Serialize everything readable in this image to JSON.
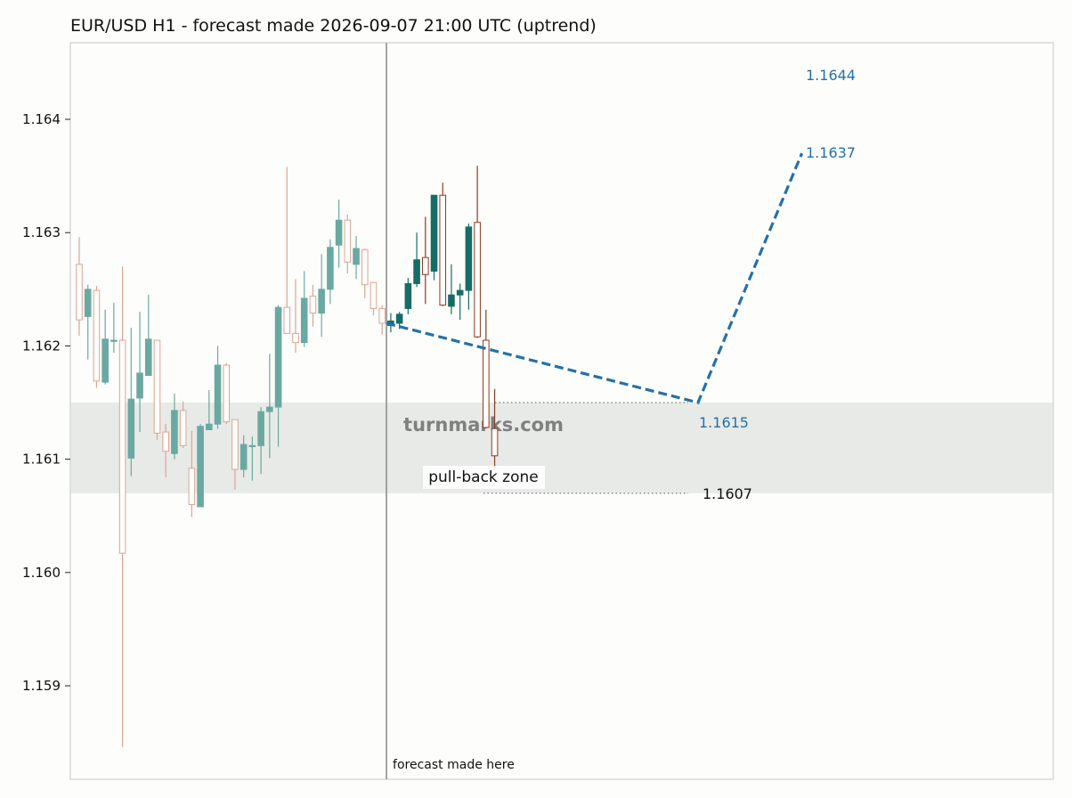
{
  "title": "EUR/USD H1 - forecast made 2026-09-07 21:00 UTC (uptrend)",
  "watermark": "turnmarks.com",
  "forecast_label": "forecast made here",
  "zone_label": "pull-back zone",
  "colors": {
    "background": "#fdfdfb",
    "frame": "#cfcfcf",
    "zone": "#e8eae7",
    "history_up": "#6aa9a1",
    "history_down": "#d9a596",
    "live_up": "#176d66",
    "live_down": "#8e3a1f",
    "forecast": "#2471a8",
    "divider": "#8f8f8f"
  },
  "chart_data": {
    "type": "candlestick",
    "ylim": [
      1.1584,
      1.1649
    ],
    "y_ticks": [
      "1.159",
      "1.160",
      "1.161",
      "1.162",
      "1.163",
      "1.164"
    ],
    "x_count": 92,
    "divider_index": 36,
    "history_candles": [
      {
        "o": 1.16272,
        "h": 1.16296,
        "l": 1.16209,
        "c": 1.16223
      },
      {
        "o": 1.16226,
        "h": 1.16254,
        "l": 1.16188,
        "c": 1.1625
      },
      {
        "o": 1.16249,
        "h": 1.16253,
        "l": 1.16163,
        "c": 1.16169
      },
      {
        "o": 1.16168,
        "h": 1.16232,
        "l": 1.16166,
        "c": 1.16206
      },
      {
        "o": 1.16204,
        "h": 1.16238,
        "l": 1.16194,
        "c": 1.16205
      },
      {
        "o": 1.16205,
        "h": 1.1627,
        "l": 1.15846,
        "c": 1.16017
      },
      {
        "o": 1.16101,
        "h": 1.16216,
        "l": 1.16085,
        "c": 1.16153
      },
      {
        "o": 1.16154,
        "h": 1.1623,
        "l": 1.16124,
        "c": 1.16176
      },
      {
        "o": 1.16174,
        "h": 1.16245,
        "l": 1.16174,
        "c": 1.16206
      },
      {
        "o": 1.16205,
        "h": 1.16205,
        "l": 1.16117,
        "c": 1.16123
      },
      {
        "o": 1.16124,
        "h": 1.16131,
        "l": 1.16084,
        "c": 1.16107
      },
      {
        "o": 1.16105,
        "h": 1.16158,
        "l": 1.161,
        "c": 1.16143
      },
      {
        "o": 1.16143,
        "h": 1.16151,
        "l": 1.1611,
        "c": 1.16112
      },
      {
        "o": 1.16092,
        "h": 1.16125,
        "l": 1.16049,
        "c": 1.1606
      },
      {
        "o": 1.16058,
        "h": 1.16131,
        "l": 1.16058,
        "c": 1.16129
      },
      {
        "o": 1.16126,
        "h": 1.16161,
        "l": 1.16126,
        "c": 1.16131
      },
      {
        "o": 1.16131,
        "h": 1.162,
        "l": 1.16127,
        "c": 1.16183
      },
      {
        "o": 1.16183,
        "h": 1.16185,
        "l": 1.16131,
        "c": 1.16133
      },
      {
        "o": 1.16135,
        "h": 1.16135,
        "l": 1.16073,
        "c": 1.16091
      },
      {
        "o": 1.16091,
        "h": 1.16121,
        "l": 1.16084,
        "c": 1.16113
      },
      {
        "o": 1.16112,
        "h": 1.1612,
        "l": 1.16081,
        "c": 1.16112
      },
      {
        "o": 1.16112,
        "h": 1.16146,
        "l": 1.16087,
        "c": 1.16142
      },
      {
        "o": 1.16142,
        "h": 1.16193,
        "l": 1.16101,
        "c": 1.16146
      },
      {
        "o": 1.16146,
        "h": 1.16236,
        "l": 1.16111,
        "c": 1.16234
      },
      {
        "o": 1.16234,
        "h": 1.16358,
        "l": 1.16211,
        "c": 1.16211
      },
      {
        "o": 1.16211,
        "h": 1.16259,
        "l": 1.16194,
        "c": 1.16203
      },
      {
        "o": 1.16203,
        "h": 1.16266,
        "l": 1.16199,
        "c": 1.16242
      },
      {
        "o": 1.16244,
        "h": 1.16254,
        "l": 1.16217,
        "c": 1.16229
      },
      {
        "o": 1.16229,
        "h": 1.16281,
        "l": 1.16208,
        "c": 1.1625
      },
      {
        "o": 1.1625,
        "h": 1.16294,
        "l": 1.16237,
        "c": 1.16287
      },
      {
        "o": 1.16289,
        "h": 1.16329,
        "l": 1.16269,
        "c": 1.16311
      },
      {
        "o": 1.16311,
        "h": 1.16316,
        "l": 1.16264,
        "c": 1.16274
      },
      {
        "o": 1.16272,
        "h": 1.16297,
        "l": 1.16259,
        "c": 1.16286
      },
      {
        "o": 1.16285,
        "h": 1.16286,
        "l": 1.16242,
        "c": 1.16254
      },
      {
        "o": 1.16256,
        "h": 1.16256,
        "l": 1.16227,
        "c": 1.16233
      },
      {
        "o": 1.16233,
        "h": 1.16236,
        "l": 1.1621,
        "c": 1.1622
      }
    ],
    "live_candles": [
      {
        "o": 1.16218,
        "h": 1.16229,
        "l": 1.16212,
        "c": 1.16222
      },
      {
        "o": 1.1622,
        "h": 1.1623,
        "l": 1.16215,
        "c": 1.16228
      },
      {
        "o": 1.16233,
        "h": 1.1626,
        "l": 1.16228,
        "c": 1.16255
      },
      {
        "o": 1.16255,
        "h": 1.163,
        "l": 1.16252,
        "c": 1.16276
      },
      {
        "o": 1.16278,
        "h": 1.16314,
        "l": 1.16237,
        "c": 1.16263
      },
      {
        "o": 1.16266,
        "h": 1.16333,
        "l": 1.16258,
        "c": 1.16333
      },
      {
        "o": 1.16333,
        "h": 1.16344,
        "l": 1.16235,
        "c": 1.16236
      },
      {
        "o": 1.16235,
        "h": 1.16272,
        "l": 1.16228,
        "c": 1.16245
      },
      {
        "o": 1.16245,
        "h": 1.16255,
        "l": 1.16223,
        "c": 1.16249
      },
      {
        "o": 1.16249,
        "h": 1.16308,
        "l": 1.16232,
        "c": 1.16305
      },
      {
        "o": 1.16309,
        "h": 1.16359,
        "l": 1.16207,
        "c": 1.16208
      },
      {
        "o": 1.16205,
        "h": 1.16232,
        "l": 1.16127,
        "c": 1.16128
      },
      {
        "o": 1.16127,
        "h": 1.16162,
        "l": 1.16092,
        "c": 1.16103
      }
    ],
    "forecast_path": [
      {
        "i": 35.5,
        "y": 1.1622
      },
      {
        "i": 71.5,
        "y": 1.1615
      },
      {
        "i": 83.5,
        "y": 1.1637
      }
    ],
    "pullback_zone": [
      1.1607,
      1.1615
    ],
    "level_labels": [
      {
        "text": "1.1644",
        "y": 1.1644,
        "tone": "forecast"
      },
      {
        "text": "1.1637",
        "y": 1.1637,
        "tone": "forecast"
      },
      {
        "text": "1.1615",
        "y": 1.1615,
        "tone": "forecast"
      },
      {
        "text": "1.1607",
        "y": 1.1607,
        "tone": "plain"
      }
    ]
  }
}
